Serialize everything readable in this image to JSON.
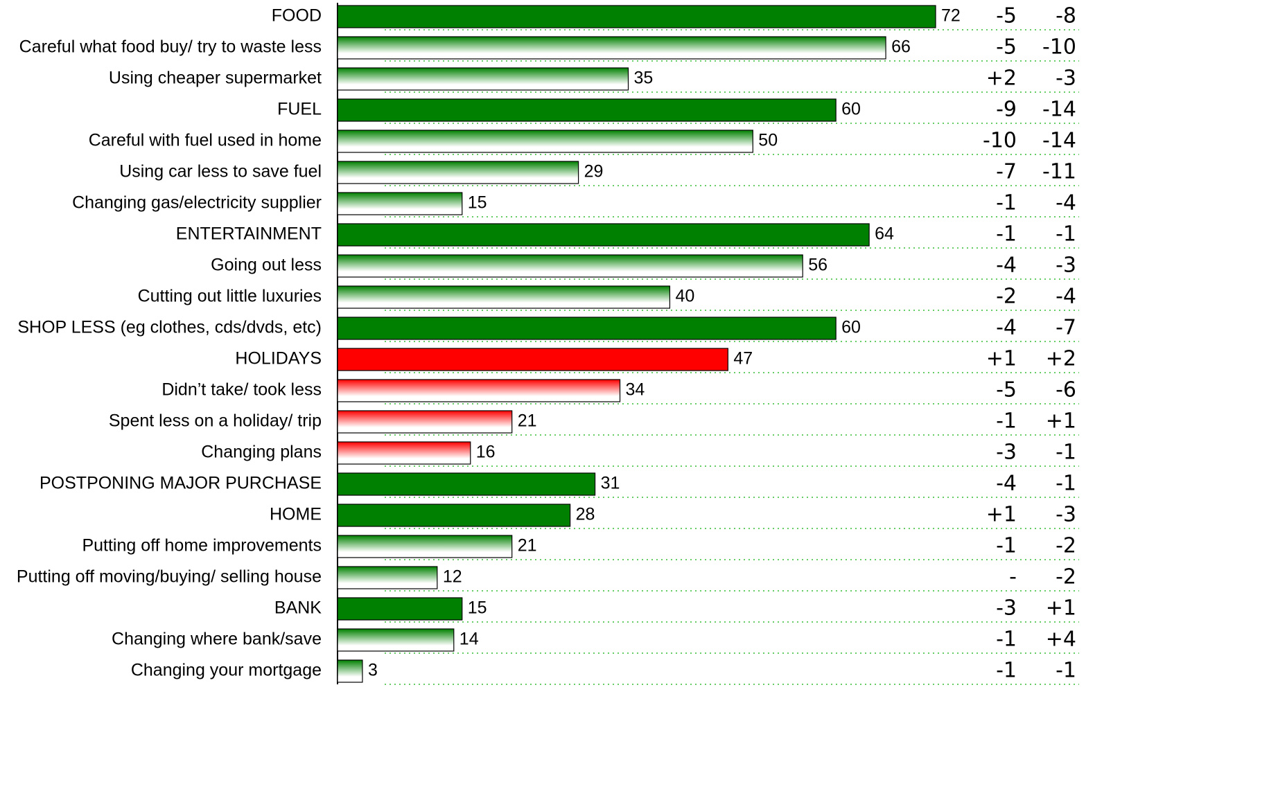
{
  "chart_data": {
    "type": "bar",
    "categories": [
      "FOOD",
      "Careful what food buy/ try to waste less",
      "Using cheaper supermarket",
      "FUEL",
      "Careful with fuel used in home",
      "Using car less to save fuel",
      "Changing gas/electricity supplier",
      "ENTERTAINMENT",
      "Going out less",
      "Cutting out little luxuries",
      "SHOP LESS (eg clothes, cds/dvds, etc)",
      "HOLIDAYS",
      "Didn’t take/ took less",
      "Spent less on a holiday/ trip",
      "Changing plans",
      "POSTPONING MAJOR PURCHASE",
      "HOME",
      "Putting off home improvements",
      "Putting off moving/buying/ selling house",
      "BANK",
      "Changing where bank/save",
      "Changing your mortgage"
    ],
    "values": [
      72,
      66,
      35,
      60,
      50,
      29,
      15,
      64,
      56,
      40,
      60,
      47,
      34,
      21,
      16,
      31,
      28,
      21,
      12,
      15,
      14,
      3
    ],
    "colors": [
      "#008000",
      "#008000",
      "#008000",
      "#008000",
      "#008000",
      "#008000",
      "#008000",
      "#008000",
      "#008000",
      "#008000",
      "#008000",
      "#ff0000",
      "#ff0000",
      "#ff0000",
      "#ff0000",
      "#008000",
      "#008000",
      "#008000",
      "#008000",
      "#008000",
      "#008000",
      "#008000"
    ],
    "gradient": [
      false,
      true,
      true,
      false,
      true,
      true,
      true,
      false,
      true,
      true,
      false,
      false,
      true,
      true,
      true,
      false,
      false,
      true,
      true,
      false,
      true,
      true
    ],
    "xlim": [
      0,
      72
    ],
    "changes": [
      {
        "values": [
          -5,
          -5,
          2,
          -9,
          -10,
          -7,
          -1,
          -1,
          -4,
          -2,
          -4,
          1,
          -5,
          -1,
          -3,
          -4,
          1,
          -1,
          null,
          -3,
          -1,
          -1
        ],
        "value_labels": [
          "-5",
          "-5",
          "+2",
          "-9",
          "-10",
          "-7",
          "-1",
          "-1",
          "-4",
          "-2",
          "-4",
          "+1",
          "-5",
          "-1",
          "-3",
          "-4",
          "+1",
          "-1",
          "-",
          "-3",
          "-1",
          "-1"
        ]
      },
      {
        "values": [
          -8,
          -10,
          -3,
          -14,
          -14,
          -11,
          -4,
          -1,
          -3,
          -4,
          -7,
          2,
          -6,
          1,
          -1,
          -1,
          -3,
          -2,
          -2,
          1,
          4,
          -1
        ],
        "value_labels": [
          "-8",
          "-10",
          "-3",
          "-14",
          "-14",
          "-11",
          "-4",
          "-1",
          "-3",
          "-4",
          "-7",
          "+2",
          "-6",
          "+1",
          "-1",
          "-1",
          "-3",
          "-2",
          "-2",
          "+1",
          "+4",
          "-1"
        ]
      }
    ]
  }
}
